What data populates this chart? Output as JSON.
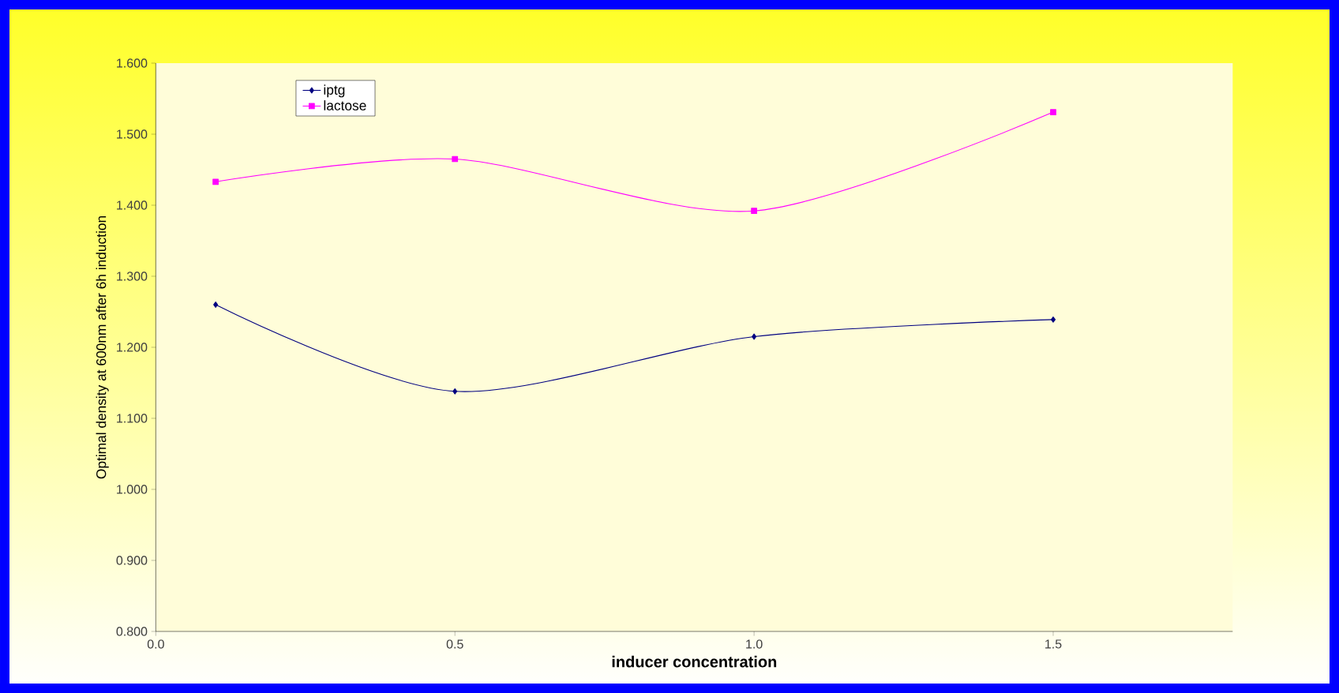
{
  "chart_data": {
    "type": "line",
    "xlabel": "inducer concentration",
    "ylabel": "Optimal density at 600nm after 6h induction",
    "x": [
      0.1,
      0.5,
      1.0,
      1.5
    ],
    "series": [
      {
        "name": "iptg",
        "color": "#000080",
        "marker": "diamond",
        "values": [
          1.26,
          1.138,
          1.215,
          1.239
        ]
      },
      {
        "name": "lactose",
        "color": "#ff00ff",
        "marker": "square",
        "values": [
          1.433,
          1.465,
          1.392,
          1.531
        ]
      }
    ],
    "xlim": [
      0,
      1.8
    ],
    "ylim": [
      0.8,
      1.6
    ],
    "xticks": [
      {
        "value": 0,
        "label": "0.0"
      },
      {
        "value": 0.5,
        "label": "0.5"
      },
      {
        "value": 1.0,
        "label": "1.0"
      },
      {
        "value": 1.5,
        "label": "1.5"
      }
    ],
    "yticks": [
      {
        "value": 0.8,
        "label": "0.800"
      },
      {
        "value": 0.9,
        "label": "0.900"
      },
      {
        "value": 1.0,
        "label": "1.000"
      },
      {
        "value": 1.1,
        "label": "1.100"
      },
      {
        "value": 1.2,
        "label": "1.200"
      },
      {
        "value": 1.3,
        "label": "1.300"
      },
      {
        "value": 1.4,
        "label": "1.400"
      },
      {
        "value": 1.5,
        "label": "1.500"
      },
      {
        "value": 1.6,
        "label": "1.600"
      }
    ],
    "legend": "top left",
    "grid": false,
    "line_style": "solid"
  }
}
